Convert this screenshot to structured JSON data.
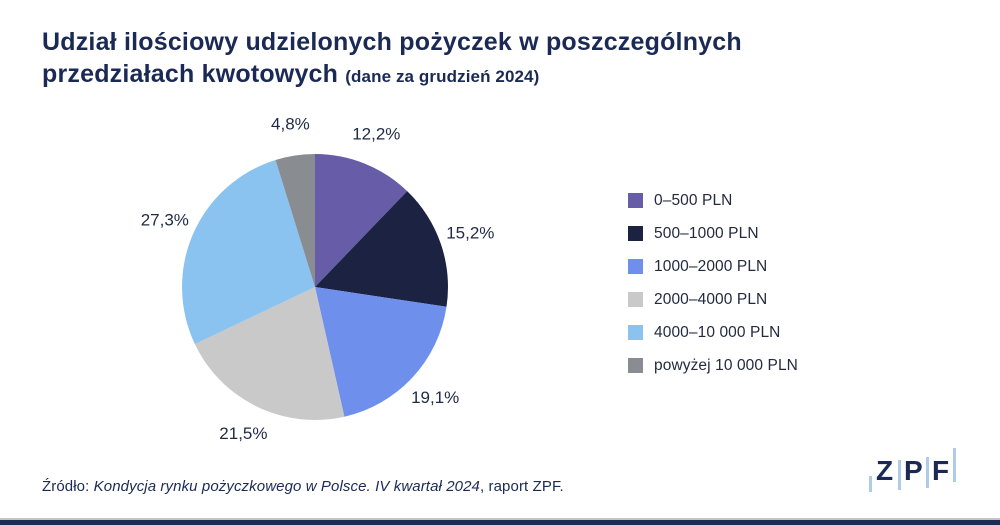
{
  "header": {
    "title_line1": "Udział ilościowy udzielonych pożyczek w poszczególnych",
    "title_line2": "przedziałach kwotowych",
    "subtitle": "(dane za grudzień 2024)"
  },
  "chart_data": {
    "type": "pie",
    "title": "Udział ilościowy udzielonych pożyczek w poszczególnych przedziałach kwotowych",
    "subtitle": "(dane za grudzień 2024)",
    "start_angle": "12 o'clock, clockwise",
    "legend_position": "right",
    "series": [
      {
        "label": "0–500 PLN",
        "value": 12.2,
        "display": "12,2%",
        "color": "#675CA8"
      },
      {
        "label": "500–1000 PLN",
        "value": 15.2,
        "display": "15,2%",
        "color": "#1C2342"
      },
      {
        "label": "1000–2000 PLN",
        "value": 19.1,
        "display": "19,1%",
        "color": "#6E90EC"
      },
      {
        "label": "2000–4000 PLN",
        "value": 21.5,
        "display": "21,5%",
        "color": "#C9C9C9"
      },
      {
        "label": "4000–10 000 PLN",
        "value": 27.3,
        "display": "27,3%",
        "color": "#8AC3F0"
      },
      {
        "label": "powyżej 10 000 PLN",
        "value": 4.8,
        "display": "4,8%",
        "color": "#898C90"
      }
    ]
  },
  "footer": {
    "source_prefix": "Źródło: ",
    "source_italic": "Kondycja rynku pożyczkowego w Polsce. IV kwartał 2024",
    "source_suffix": ", raport ZPF."
  },
  "logo": {
    "letters": [
      "Z",
      "P",
      "F"
    ],
    "text_color": "#1B2A55",
    "bar_color": "#AECBE8"
  },
  "colors": {
    "background": "#FFFFFF",
    "text_navy": "#1B2A55",
    "bottom_bar": "#1E2B52",
    "divider": "#C3C3C3"
  }
}
